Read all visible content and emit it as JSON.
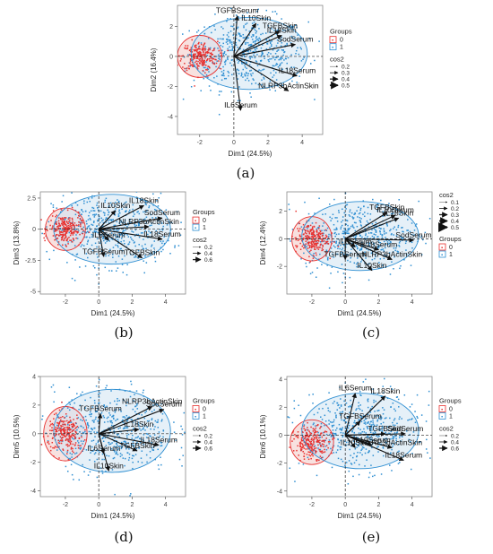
{
  "colors": {
    "group0": "#e8312f",
    "group0_fill": "#f3c9c5",
    "group1": "#2f8fd2",
    "group1_fill": "#cfe4f2",
    "arrow": "#111111"
  },
  "legend_labels": {
    "groups_title": "Groups",
    "cos2_title": "cos2"
  },
  "chart_data": [
    {
      "type": "scatter",
      "caption": "(a)",
      "xlabel": "Dim1 (24.5%)",
      "ylabel": "Dim2 (16.4%)",
      "xlim": [
        -3.3,
        5.2
      ],
      "ylim": [
        -5.2,
        3.4
      ],
      "xticks": [
        -2,
        0,
        2,
        4
      ],
      "yticks": [
        -4,
        -2,
        0,
        2
      ],
      "groups": [
        "0",
        "1"
      ],
      "cos2_levels": [
        0.2,
        0.3,
        0.4,
        0.5
      ],
      "ellipses": [
        {
          "group": "0",
          "cx": -2.0,
          "cy": 0.0,
          "rx": 1.3,
          "ry": 1.4
        },
        {
          "group": "1",
          "cx": 0.9,
          "cy": 0.2,
          "rx": 3.4,
          "ry": 2.4
        }
      ],
      "arrows": [
        {
          "label": "TGFBSerum",
          "x": 0.2,
          "y": 2.7
        },
        {
          "label": "IL10Skin",
          "x": 1.3,
          "y": 2.2
        },
        {
          "label": "TGFBSkin",
          "x": 2.7,
          "y": 1.7
        },
        {
          "label": "IL18Skin",
          "x": 2.8,
          "y": 1.4
        },
        {
          "label": "SodSerum",
          "x": 3.6,
          "y": 0.8
        },
        {
          "label": "IL18Serum",
          "x": 3.7,
          "y": -1.3
        },
        {
          "label": "NLRP3bActinSkin",
          "x": 3.2,
          "y": -2.3
        },
        {
          "label": "IL6Serum",
          "x": 0.4,
          "y": -3.6
        }
      ]
    },
    {
      "type": "scatter",
      "caption": "(b)",
      "xlabel": "Dim1 (24.5%)",
      "ylabel": "Dim3 (13.8%)",
      "xlim": [
        -3.5,
        5.2
      ],
      "ylim": [
        -5.2,
        3.0
      ],
      "xticks": [
        -2,
        0,
        2,
        4
      ],
      "yticks": [
        -5.0,
        -2.5,
        0.0,
        2.5
      ],
      "groups": [
        "0",
        "1"
      ],
      "cos2_levels": [
        0.2,
        0.4,
        0.6
      ],
      "ellipses": [
        {
          "group": "0",
          "cx": -2.0,
          "cy": 0.0,
          "rx": 1.2,
          "ry": 1.7
        },
        {
          "group": "1",
          "cx": 0.8,
          "cy": 0.0,
          "rx": 3.5,
          "ry": 2.8
        }
      ],
      "arrows": [
        {
          "label": "IL10Skin",
          "x": 1.0,
          "y": 1.5
        },
        {
          "label": "IL18Skin",
          "x": 2.7,
          "y": 1.9
        },
        {
          "label": "SodSerum",
          "x": 3.8,
          "y": 0.9
        },
        {
          "label": "NLRP3bActinSkin",
          "x": 3.0,
          "y": 0.2
        },
        {
          "label": "IL18Serum",
          "x": 3.8,
          "y": -0.8
        },
        {
          "label": "IL6Serum",
          "x": 0.6,
          "y": -0.9
        },
        {
          "label": "TGFBSerum",
          "x": 0.3,
          "y": -2.2
        },
        {
          "label": "TGFBSkin",
          "x": 2.6,
          "y": -2.3
        }
      ]
    },
    {
      "type": "scatter",
      "caption": "(c)",
      "xlabel": "Dim1 (24.5%)",
      "ylabel": "Dim4 (12.4%)",
      "xlim": [
        -3.5,
        5.2
      ],
      "ylim": [
        -4.0,
        3.4
      ],
      "xticks": [
        -2,
        0,
        2,
        4
      ],
      "yticks": [
        -2,
        0,
        2
      ],
      "groups": [
        "0",
        "1"
      ],
      "cos2_levels": [
        0.1,
        0.2,
        0.3,
        0.4,
        0.5
      ],
      "ellipses": [
        {
          "group": "0",
          "cx": -2.0,
          "cy": 0.0,
          "rx": 1.2,
          "ry": 1.6
        },
        {
          "group": "1",
          "cx": 0.9,
          "cy": 0.2,
          "rx": 3.5,
          "ry": 2.5
        }
      ],
      "arrows": [
        {
          "label": "TGFBSkin",
          "x": 2.5,
          "y": 1.9
        },
        {
          "label": "IL10Serum",
          "x": 3.0,
          "y": 1.7
        },
        {
          "label": "IL18Skin",
          "x": 3.2,
          "y": 1.5
        },
        {
          "label": "SodSerum",
          "x": 4.1,
          "y": -0.1
        },
        {
          "label": "IL6Serum",
          "x": 0.6,
          "y": -0.6
        },
        {
          "label": "IL18Serum",
          "x": 2.0,
          "y": -0.8
        },
        {
          "label": "TGFBSerum",
          "x": 0.0,
          "y": -1.5
        },
        {
          "label": "NLRP3bActinSkin",
          "x": 2.8,
          "y": -1.5
        },
        {
          "label": "IL10Skin",
          "x": 1.6,
          "y": -2.3
        }
      ]
    },
    {
      "type": "scatter",
      "caption": "(d)",
      "xlabel": "Dim1 (24.5%)",
      "ylabel": "Dim5 (10.5%)",
      "xlim": [
        -3.5,
        5.2
      ],
      "ylim": [
        -4.4,
        4.0
      ],
      "xticks": [
        -2,
        0,
        2,
        4
      ],
      "yticks": [
        -4,
        -2,
        0,
        2,
        4
      ],
      "groups": [
        "0",
        "1"
      ],
      "cos2_levels": [
        0.2,
        0.4,
        0.6
      ],
      "ellipses": [
        {
          "group": "0",
          "cx": -2.0,
          "cy": 0.0,
          "rx": 1.3,
          "ry": 1.9
        },
        {
          "group": "1",
          "cx": 0.8,
          "cy": 0.2,
          "rx": 3.5,
          "ry": 2.9
        }
      ],
      "arrows": [
        {
          "label": "NLRP3bActinSkin",
          "x": 3.2,
          "y": 1.9
        },
        {
          "label": "SodSerum",
          "x": 3.9,
          "y": 1.7
        },
        {
          "label": "TGFBSerum",
          "x": 0.1,
          "y": 1.4
        },
        {
          "label": "IL18Skin",
          "x": 2.4,
          "y": 0.3
        },
        {
          "label": "IL18Serum",
          "x": 3.6,
          "y": -0.8
        },
        {
          "label": "TGFBSkin",
          "x": 2.3,
          "y": -1.2
        },
        {
          "label": "IL6Serum",
          "x": 0.3,
          "y": -1.4
        },
        {
          "label": "IL10Skin",
          "x": 0.6,
          "y": -2.6
        }
      ]
    },
    {
      "type": "scatter",
      "caption": "(e)",
      "xlabel": "Dim1 (24.5%)",
      "ylabel": "Dim6 (10.1%)",
      "xlim": [
        -3.5,
        5.2
      ],
      "ylim": [
        -4.4,
        4.2
      ],
      "xticks": [
        -2,
        0,
        2,
        4
      ],
      "yticks": [
        -4,
        -2,
        0,
        2,
        4
      ],
      "groups": [
        "0",
        "1"
      ],
      "cos2_levels": [
        0.2,
        0.4,
        0.6
      ],
      "ellipses": [
        {
          "group": "0",
          "cx": -2.0,
          "cy": -0.5,
          "rx": 1.3,
          "ry": 1.6
        },
        {
          "group": "1",
          "cx": 0.9,
          "cy": 0.3,
          "rx": 3.5,
          "ry": 2.7
        }
      ],
      "arrows": [
        {
          "label": "IL6Serum",
          "x": 0.6,
          "y": 3.0
        },
        {
          "label": "IL18Skin",
          "x": 2.4,
          "y": 2.8
        },
        {
          "label": "TGFBSerum",
          "x": 0.9,
          "y": 1.0
        },
        {
          "label": "TGFBSkin",
          "x": 2.4,
          "y": 0.1
        },
        {
          "label": "SodSerum",
          "x": 3.6,
          "y": 0.1
        },
        {
          "label": "IL10Skin",
          "x": 0.6,
          "y": -0.9
        },
        {
          "label": "IL10Serum",
          "x": 1.6,
          "y": -0.7
        },
        {
          "label": "NLRP3bActinSkin",
          "x": 2.8,
          "y": -0.9
        },
        {
          "label": "IL18Serum",
          "x": 3.5,
          "y": -1.8
        }
      ]
    }
  ]
}
